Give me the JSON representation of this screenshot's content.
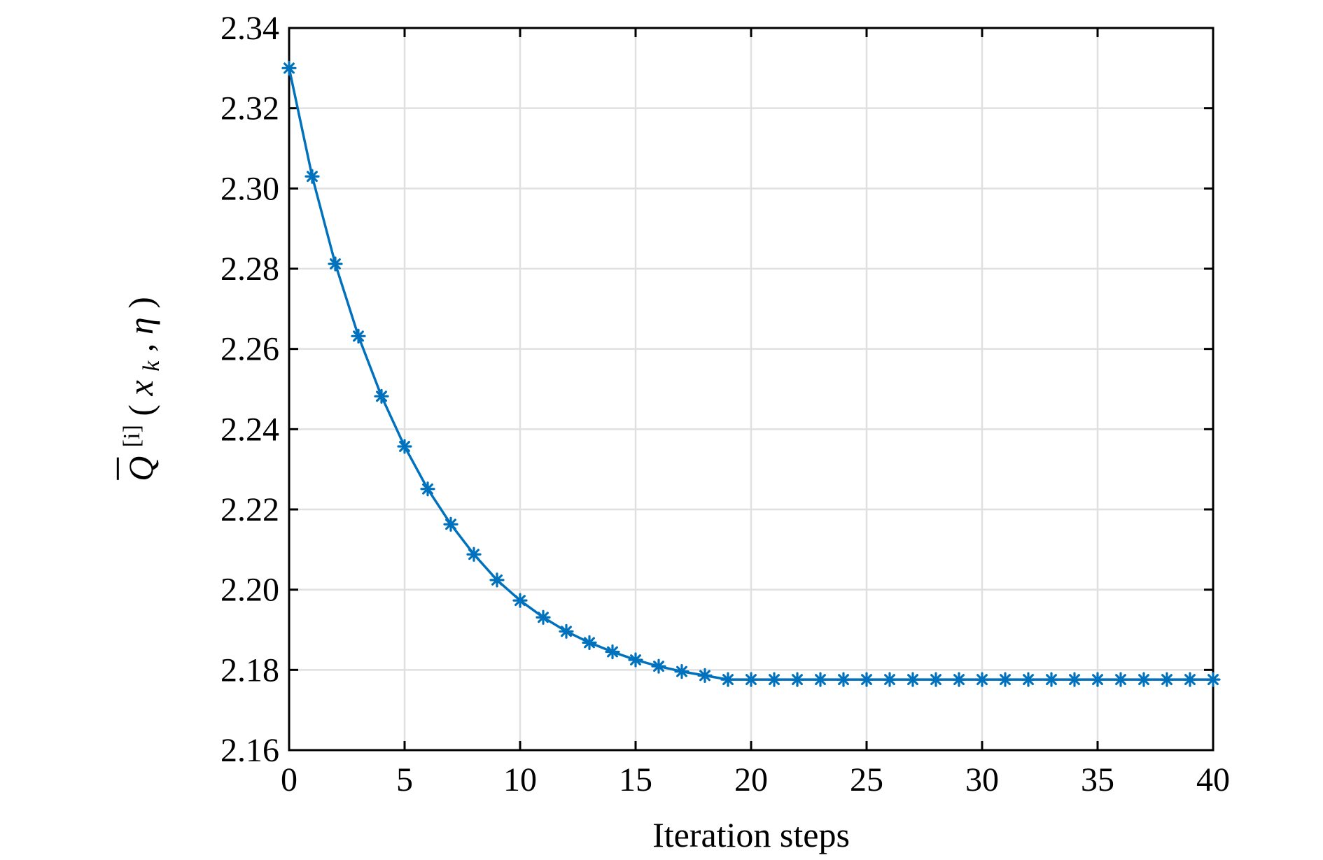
{
  "chart_data": {
    "type": "line",
    "title": "",
    "xlabel": "Iteration steps",
    "ylabel": {
      "base": "Q",
      "superscript": "[i]",
      "open": "(",
      "arg1": "x",
      "arg1_subscript": "k",
      "separator": ", ",
      "arg2": "η",
      "close": ")"
    },
    "xlim": [
      0,
      40
    ],
    "ylim": [
      2.16,
      2.34
    ],
    "xticks": [
      0,
      5,
      10,
      15,
      20,
      25,
      30,
      35,
      40
    ],
    "xtick_labels": [
      "0",
      "5",
      "10",
      "15",
      "20",
      "25",
      "30",
      "35",
      "40"
    ],
    "yticks": [
      2.16,
      2.18,
      2.2,
      2.22,
      2.24,
      2.26,
      2.28,
      2.3,
      2.32,
      2.34
    ],
    "ytick_labels": [
      "2.16",
      "2.18",
      "2.20",
      "2.22",
      "2.24",
      "2.26",
      "2.28",
      "2.30",
      "2.32",
      "2.34"
    ],
    "grid": true,
    "legend": "none",
    "marker": "asterisk",
    "color": "#0072BD",
    "series": [
      {
        "x": [
          0,
          1,
          2,
          3,
          4,
          5,
          6,
          7,
          8,
          9,
          10,
          11,
          12,
          13,
          14,
          15,
          16,
          17,
          18,
          19,
          20,
          21,
          22,
          23,
          24,
          25,
          26,
          27,
          28,
          29,
          30,
          31,
          32,
          33,
          34,
          35,
          36,
          37,
          38,
          39,
          40
        ],
        "values": [
          2.33,
          2.303,
          2.2812,
          2.2632,
          2.2482,
          2.2357,
          2.2251,
          2.2163,
          2.2088,
          2.2024,
          2.1973,
          2.1931,
          2.1896,
          2.1868,
          2.1845,
          2.1825,
          2.1809,
          2.1796,
          2.1786,
          2.1776,
          2.1776,
          2.1776,
          2.1776,
          2.1776,
          2.1776,
          2.1776,
          2.1776,
          2.1776,
          2.1776,
          2.1776,
          2.1776,
          2.1776,
          2.1776,
          2.1776,
          2.1776,
          2.1776,
          2.1776,
          2.1776,
          2.1776,
          2.1776,
          2.1776
        ]
      }
    ]
  }
}
